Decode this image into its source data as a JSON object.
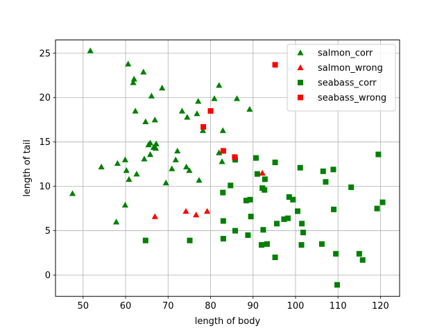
{
  "chart_data": {
    "type": "scatter",
    "title": "",
    "xlabel": "length of body",
    "ylabel": "length of tail",
    "xlim": [
      43.5,
      124.5
    ],
    "ylim": [
      -2.4,
      26.5
    ],
    "xticks": [
      50,
      60,
      70,
      80,
      90,
      100,
      110,
      120
    ],
    "yticks": [
      0,
      5,
      10,
      15,
      20,
      25
    ],
    "grid": true,
    "legend_position": "top-right",
    "series": [
      {
        "name": "salmon_corr",
        "marker": "triangle",
        "color": "#008000",
        "points": [
          [
            47.5,
            9.2
          ],
          [
            51.7,
            25.3
          ],
          [
            54.3,
            12.2
          ],
          [
            57.8,
            6.0
          ],
          [
            58.1,
            12.6
          ],
          [
            59.9,
            13.0
          ],
          [
            59.9,
            7.9
          ],
          [
            60.2,
            11.8
          ],
          [
            60.6,
            23.8
          ],
          [
            60.8,
            10.8
          ],
          [
            61.8,
            21.7
          ],
          [
            62.0,
            22.1
          ],
          [
            62.3,
            18.5
          ],
          [
            62.6,
            11.4
          ],
          [
            64.2,
            22.9
          ],
          [
            64.4,
            13.1
          ],
          [
            64.7,
            17.3
          ],
          [
            65.4,
            14.7
          ],
          [
            65.8,
            14.9
          ],
          [
            65.8,
            13.6
          ],
          [
            66.1,
            20.2
          ],
          [
            66.6,
            14.4
          ],
          [
            66.9,
            17.5
          ],
          [
            67.1,
            14.3
          ],
          [
            67.2,
            14.8
          ],
          [
            68.6,
            21.1
          ],
          [
            69.5,
            10.4
          ],
          [
            70.9,
            12.0
          ],
          [
            71.8,
            13.0
          ],
          [
            72.2,
            14.0
          ],
          [
            73.3,
            18.5
          ],
          [
            74.3,
            12.2
          ],
          [
            74.5,
            17.8
          ],
          [
            75.0,
            11.8
          ],
          [
            76.8,
            18.2
          ],
          [
            77.1,
            19.6
          ],
          [
            77.3,
            10.7
          ],
          [
            78.2,
            16.3
          ],
          [
            80.9,
            19.9
          ],
          [
            82.0,
            21.4
          ],
          [
            82.0,
            13.8
          ],
          [
            82.7,
            12.8
          ],
          [
            82.9,
            16.3
          ],
          [
            86.2,
            19.9
          ],
          [
            89.2,
            18.7
          ]
        ]
      },
      {
        "name": "salmon_wrong",
        "marker": "triangle",
        "color": "#ff0000",
        "points": [
          [
            66.9,
            6.6
          ],
          [
            74.2,
            7.2
          ],
          [
            76.6,
            6.8
          ],
          [
            79.2,
            7.2
          ],
          [
            92.2,
            11.5
          ]
        ]
      },
      {
        "name": "seabass_corr",
        "marker": "square",
        "color": "#008000",
        "points": [
          [
            64.7,
            3.9
          ],
          [
            75.1,
            3.9
          ],
          [
            82.9,
            9.3
          ],
          [
            83.0,
            6.1
          ],
          [
            83.0,
            4.1
          ],
          [
            84.7,
            10.1
          ],
          [
            85.8,
            13.0
          ],
          [
            85.8,
            5.0
          ],
          [
            88.4,
            8.4
          ],
          [
            88.8,
            4.5
          ],
          [
            89.3,
            8.5
          ],
          [
            89.5,
            6.6
          ],
          [
            90.7,
            13.2
          ],
          [
            91.0,
            11.4
          ],
          [
            92.0,
            3.4
          ],
          [
            92.2,
            9.8
          ],
          [
            92.4,
            5.1
          ],
          [
            92.7,
            9.6
          ],
          [
            92.8,
            10.8
          ],
          [
            93.3,
            3.5
          ],
          [
            95.2,
            2.0
          ],
          [
            95.2,
            12.7
          ],
          [
            95.6,
            5.8
          ],
          [
            97.3,
            6.3
          ],
          [
            98.2,
            6.4
          ],
          [
            98.5,
            8.8
          ],
          [
            99.4,
            8.5
          ],
          [
            100.5,
            7.2
          ],
          [
            101.1,
            12.1
          ],
          [
            101.4,
            3.4
          ],
          [
            101.5,
            5.8
          ],
          [
            101.8,
            4.8
          ],
          [
            106.2,
            3.5
          ],
          [
            106.5,
            11.7
          ],
          [
            107.1,
            10.5
          ],
          [
            108.9,
            11.9
          ],
          [
            109.0,
            7.4
          ],
          [
            109.5,
            2.4
          ],
          [
            109.8,
            -1.1
          ],
          [
            113.1,
            9.9
          ],
          [
            115.0,
            2.4
          ],
          [
            115.8,
            1.7
          ],
          [
            119.2,
            7.5
          ],
          [
            119.5,
            13.6
          ],
          [
            120.5,
            8.2
          ]
        ]
      },
      {
        "name": "seabass_wrong",
        "marker": "square",
        "color": "#ff0000",
        "points": [
          [
            78.3,
            16.7
          ],
          [
            80.0,
            18.5
          ],
          [
            83.0,
            14.0
          ],
          [
            85.7,
            13.3
          ],
          [
            95.2,
            23.7
          ]
        ]
      }
    ]
  }
}
